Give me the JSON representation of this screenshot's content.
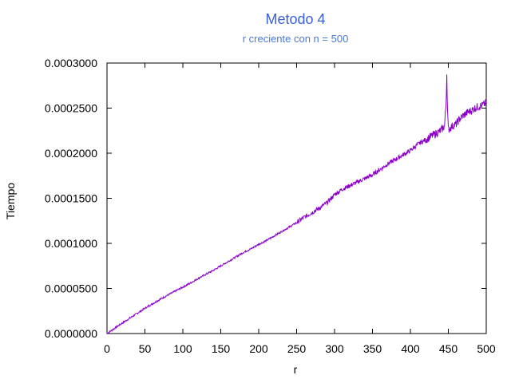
{
  "chart_data": {
    "type": "line",
    "title": "Metodo 4",
    "subtitle": "r creciente con n = 500",
    "xlabel": "r",
    "ylabel": "Tiempo",
    "xlim": [
      0,
      500
    ],
    "ylim": [
      0,
      0.0003
    ],
    "x_ticks": [
      "0",
      "50",
      "100",
      "150",
      "200",
      "250",
      "300",
      "350",
      "400",
      "450",
      "500"
    ],
    "y_ticks": [
      "0.0000000",
      "0.0000500",
      "0.0001000",
      "0.0001500",
      "0.0002000",
      "0.0002500",
      "0.0003000"
    ],
    "grid": false,
    "legend": "none",
    "colors": {
      "title": "#3a5fd9",
      "subtitle": "#4a78d8",
      "line": "#8b00c9",
      "axis": "#000000"
    },
    "series": [
      {
        "x": [
          0,
          10,
          20,
          30,
          40,
          50,
          60,
          70,
          80,
          90,
          100,
          110,
          120,
          130,
          140,
          150,
          160,
          170,
          180,
          190,
          200,
          210,
          220,
          230,
          240,
          250,
          260,
          270,
          280,
          290,
          300,
          310,
          320,
          330,
          340,
          350,
          360,
          370,
          380,
          390,
          400,
          410,
          420,
          430,
          440,
          445,
          447,
          448,
          449,
          450,
          455,
          460,
          465,
          470,
          475,
          480,
          485,
          490,
          495,
          500
        ],
        "y": [
          0.0,
          5.8e-06,
          1.15e-05,
          1.7e-05,
          2.25e-05,
          2.8e-05,
          3.3e-05,
          3.8e-05,
          4.25e-05,
          4.7e-05,
          5.15e-05,
          5.6e-05,
          6.1e-05,
          6.55e-05,
          7e-05,
          7.5e-05,
          8e-05,
          8.5e-05,
          9e-05,
          9.4e-05,
          9.9e-05,
          0.000103,
          0.000108,
          0.000113,
          0.000118,
          0.000123,
          0.000129,
          0.000134,
          0.000139,
          0.000145,
          0.000154,
          0.00016,
          0.000164,
          0.000168,
          0.000172,
          0.000176,
          0.000182,
          0.000188,
          0.000193,
          0.000198,
          0.000203,
          0.00021,
          0.000215,
          0.00022,
          0.000225,
          0.00023,
          0.000255,
          0.000288,
          0.000245,
          0.000226,
          0.00023,
          0.000232,
          0.000238,
          0.000242,
          0.000245,
          0.000247,
          0.00025,
          0.000252,
          0.000253,
          0.000256
        ]
      }
    ]
  }
}
